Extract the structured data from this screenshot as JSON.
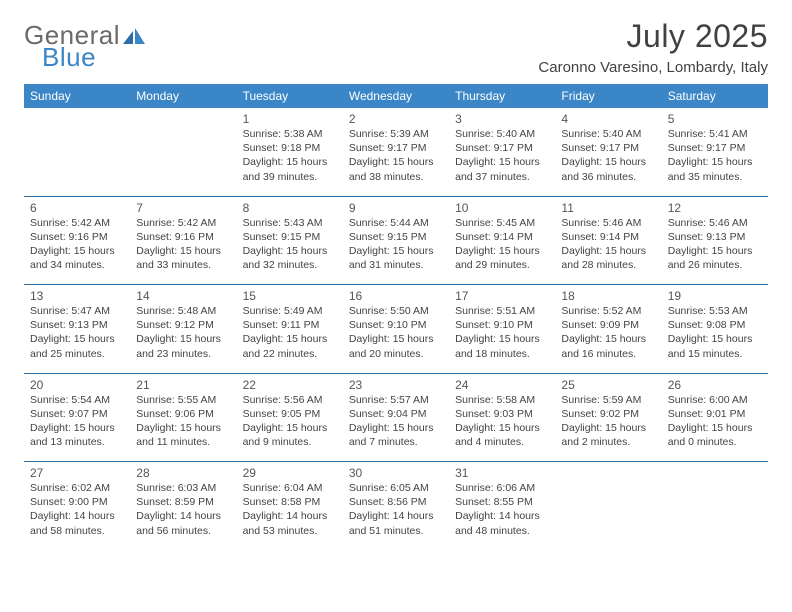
{
  "brand": {
    "word1": "General",
    "word2": "Blue"
  },
  "title": "July 2025",
  "subtitle": "Caronno Varesino, Lombardy, Italy",
  "colors": {
    "header_bg": "#3b86c6",
    "header_text": "#ffffff",
    "rule": "#2e6ea8",
    "body_text": "#444444",
    "title_text": "#414141",
    "logo_gray": "#6a6a6a",
    "logo_blue": "#3b86c6",
    "page_bg": "#ffffff"
  },
  "typography": {
    "title_fontsize": 32,
    "subtitle_fontsize": 15,
    "dayheader_fontsize": 12,
    "daynum_fontsize": 12,
    "cell_fontsize": 10.5
  },
  "day_headers": [
    "Sunday",
    "Monday",
    "Tuesday",
    "Wednesday",
    "Thursday",
    "Friday",
    "Saturday"
  ],
  "weeks": [
    [
      null,
      null,
      {
        "n": "1",
        "sr": "Sunrise: 5:38 AM",
        "ss": "Sunset: 9:18 PM",
        "d1": "Daylight: 15 hours",
        "d2": "and 39 minutes."
      },
      {
        "n": "2",
        "sr": "Sunrise: 5:39 AM",
        "ss": "Sunset: 9:17 PM",
        "d1": "Daylight: 15 hours",
        "d2": "and 38 minutes."
      },
      {
        "n": "3",
        "sr": "Sunrise: 5:40 AM",
        "ss": "Sunset: 9:17 PM",
        "d1": "Daylight: 15 hours",
        "d2": "and 37 minutes."
      },
      {
        "n": "4",
        "sr": "Sunrise: 5:40 AM",
        "ss": "Sunset: 9:17 PM",
        "d1": "Daylight: 15 hours",
        "d2": "and 36 minutes."
      },
      {
        "n": "5",
        "sr": "Sunrise: 5:41 AM",
        "ss": "Sunset: 9:17 PM",
        "d1": "Daylight: 15 hours",
        "d2": "and 35 minutes."
      }
    ],
    [
      {
        "n": "6",
        "sr": "Sunrise: 5:42 AM",
        "ss": "Sunset: 9:16 PM",
        "d1": "Daylight: 15 hours",
        "d2": "and 34 minutes."
      },
      {
        "n": "7",
        "sr": "Sunrise: 5:42 AM",
        "ss": "Sunset: 9:16 PM",
        "d1": "Daylight: 15 hours",
        "d2": "and 33 minutes."
      },
      {
        "n": "8",
        "sr": "Sunrise: 5:43 AM",
        "ss": "Sunset: 9:15 PM",
        "d1": "Daylight: 15 hours",
        "d2": "and 32 minutes."
      },
      {
        "n": "9",
        "sr": "Sunrise: 5:44 AM",
        "ss": "Sunset: 9:15 PM",
        "d1": "Daylight: 15 hours",
        "d2": "and 31 minutes."
      },
      {
        "n": "10",
        "sr": "Sunrise: 5:45 AM",
        "ss": "Sunset: 9:14 PM",
        "d1": "Daylight: 15 hours",
        "d2": "and 29 minutes."
      },
      {
        "n": "11",
        "sr": "Sunrise: 5:46 AM",
        "ss": "Sunset: 9:14 PM",
        "d1": "Daylight: 15 hours",
        "d2": "and 28 minutes."
      },
      {
        "n": "12",
        "sr": "Sunrise: 5:46 AM",
        "ss": "Sunset: 9:13 PM",
        "d1": "Daylight: 15 hours",
        "d2": "and 26 minutes."
      }
    ],
    [
      {
        "n": "13",
        "sr": "Sunrise: 5:47 AM",
        "ss": "Sunset: 9:13 PM",
        "d1": "Daylight: 15 hours",
        "d2": "and 25 minutes."
      },
      {
        "n": "14",
        "sr": "Sunrise: 5:48 AM",
        "ss": "Sunset: 9:12 PM",
        "d1": "Daylight: 15 hours",
        "d2": "and 23 minutes."
      },
      {
        "n": "15",
        "sr": "Sunrise: 5:49 AM",
        "ss": "Sunset: 9:11 PM",
        "d1": "Daylight: 15 hours",
        "d2": "and 22 minutes."
      },
      {
        "n": "16",
        "sr": "Sunrise: 5:50 AM",
        "ss": "Sunset: 9:10 PM",
        "d1": "Daylight: 15 hours",
        "d2": "and 20 minutes."
      },
      {
        "n": "17",
        "sr": "Sunrise: 5:51 AM",
        "ss": "Sunset: 9:10 PM",
        "d1": "Daylight: 15 hours",
        "d2": "and 18 minutes."
      },
      {
        "n": "18",
        "sr": "Sunrise: 5:52 AM",
        "ss": "Sunset: 9:09 PM",
        "d1": "Daylight: 15 hours",
        "d2": "and 16 minutes."
      },
      {
        "n": "19",
        "sr": "Sunrise: 5:53 AM",
        "ss": "Sunset: 9:08 PM",
        "d1": "Daylight: 15 hours",
        "d2": "and 15 minutes."
      }
    ],
    [
      {
        "n": "20",
        "sr": "Sunrise: 5:54 AM",
        "ss": "Sunset: 9:07 PM",
        "d1": "Daylight: 15 hours",
        "d2": "and 13 minutes."
      },
      {
        "n": "21",
        "sr": "Sunrise: 5:55 AM",
        "ss": "Sunset: 9:06 PM",
        "d1": "Daylight: 15 hours",
        "d2": "and 11 minutes."
      },
      {
        "n": "22",
        "sr": "Sunrise: 5:56 AM",
        "ss": "Sunset: 9:05 PM",
        "d1": "Daylight: 15 hours",
        "d2": "and 9 minutes."
      },
      {
        "n": "23",
        "sr": "Sunrise: 5:57 AM",
        "ss": "Sunset: 9:04 PM",
        "d1": "Daylight: 15 hours",
        "d2": "and 7 minutes."
      },
      {
        "n": "24",
        "sr": "Sunrise: 5:58 AM",
        "ss": "Sunset: 9:03 PM",
        "d1": "Daylight: 15 hours",
        "d2": "and 4 minutes."
      },
      {
        "n": "25",
        "sr": "Sunrise: 5:59 AM",
        "ss": "Sunset: 9:02 PM",
        "d1": "Daylight: 15 hours",
        "d2": "and 2 minutes."
      },
      {
        "n": "26",
        "sr": "Sunrise: 6:00 AM",
        "ss": "Sunset: 9:01 PM",
        "d1": "Daylight: 15 hours",
        "d2": "and 0 minutes."
      }
    ],
    [
      {
        "n": "27",
        "sr": "Sunrise: 6:02 AM",
        "ss": "Sunset: 9:00 PM",
        "d1": "Daylight: 14 hours",
        "d2": "and 58 minutes."
      },
      {
        "n": "28",
        "sr": "Sunrise: 6:03 AM",
        "ss": "Sunset: 8:59 PM",
        "d1": "Daylight: 14 hours",
        "d2": "and 56 minutes."
      },
      {
        "n": "29",
        "sr": "Sunrise: 6:04 AM",
        "ss": "Sunset: 8:58 PM",
        "d1": "Daylight: 14 hours",
        "d2": "and 53 minutes."
      },
      {
        "n": "30",
        "sr": "Sunrise: 6:05 AM",
        "ss": "Sunset: 8:56 PM",
        "d1": "Daylight: 14 hours",
        "d2": "and 51 minutes."
      },
      {
        "n": "31",
        "sr": "Sunrise: 6:06 AM",
        "ss": "Sunset: 8:55 PM",
        "d1": "Daylight: 14 hours",
        "d2": "and 48 minutes."
      },
      null,
      null
    ]
  ]
}
